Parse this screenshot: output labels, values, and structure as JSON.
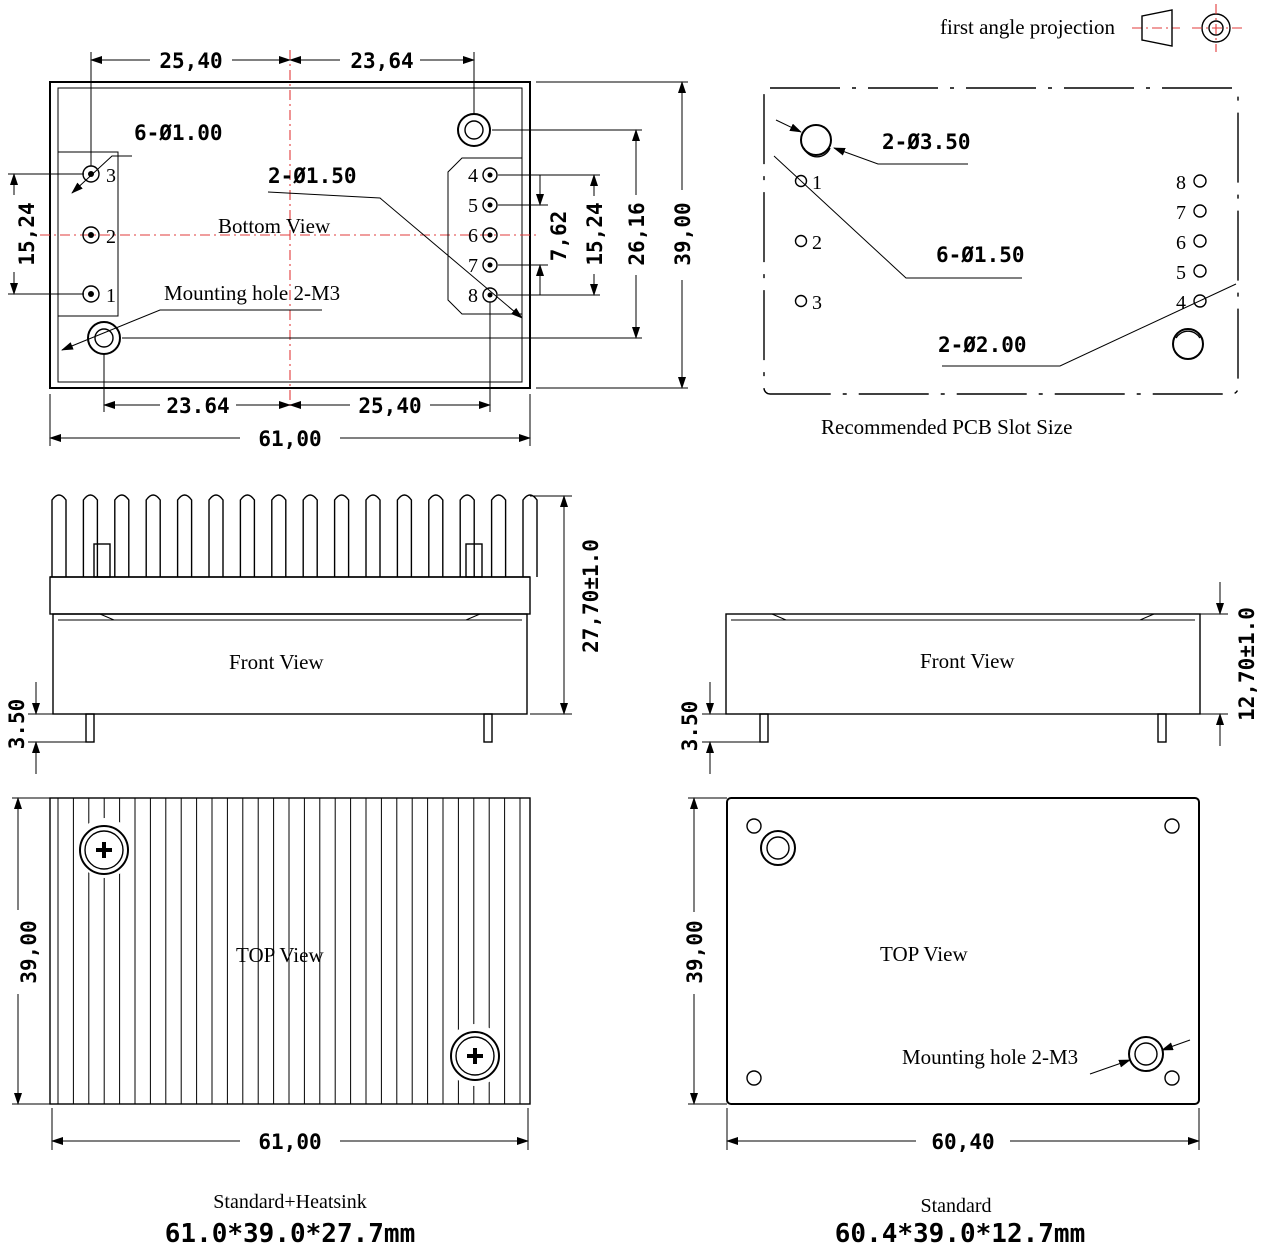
{
  "projection": {
    "label": "first angle projection",
    "accent_color": "#e23b3b"
  },
  "bottom_view": {
    "title": "Bottom View",
    "dims": {
      "left_top": "25,40",
      "right_top": "23,64",
      "left_bottom": "23.64",
      "right_bottom": "25,40",
      "overall_width": "61,00",
      "left_pitch": "15,24",
      "right_inner": "7,62",
      "right_outer": "15,24",
      "hole_span": "26,16",
      "overall_height": "39,00"
    },
    "callouts": {
      "pins": "6-Ø1.00",
      "pins_right": "2-Ø1.50",
      "mount": "Mounting hole 2-M3"
    },
    "left_pins": [
      "3",
      "2",
      "1"
    ],
    "right_pins": [
      "4",
      "5",
      "6",
      "7",
      "8"
    ]
  },
  "pcb_view": {
    "title": "Recommended PCB Slot Size",
    "callouts": {
      "big_holes": "2-Ø3.50",
      "pins": "6-Ø1.50",
      "mount": "2-Ø2.00"
    },
    "left_pins": [
      "1",
      "2",
      "3"
    ],
    "right_pins": [
      "8",
      "7",
      "6",
      "5",
      "4"
    ]
  },
  "front_heatsink": {
    "title": "Front View",
    "pin_len": "3.50",
    "height": "27,70±1.0"
  },
  "front_standard": {
    "title": "Front View",
    "pin_len": "3.50",
    "height": "12,70±1.0"
  },
  "top_heatsink": {
    "title": "TOP View",
    "height": "39,00",
    "width": "61,00"
  },
  "top_standard": {
    "title": "TOP View",
    "height": "39,00",
    "width": "60,40",
    "mount": "Mounting hole 2-M3"
  },
  "captions": {
    "heatsink_name": "Standard+Heatsink",
    "heatsink_size": "61.0*39.0*27.7mm",
    "standard_name": "Standard",
    "standard_size": "60.4*39.0*12.7mm"
  }
}
